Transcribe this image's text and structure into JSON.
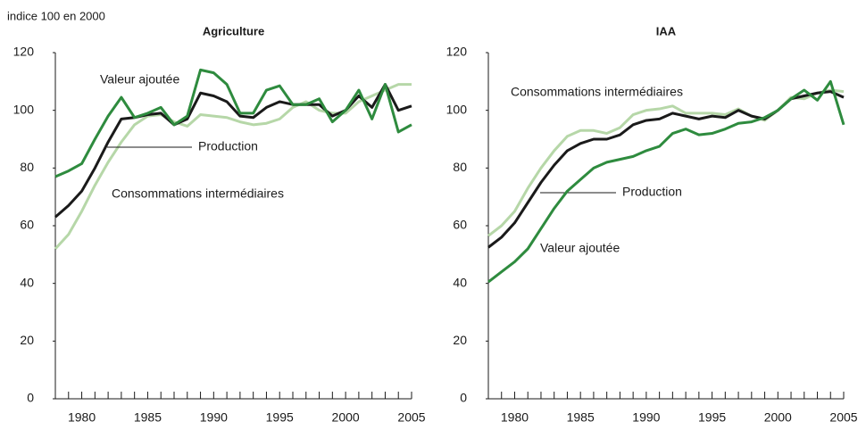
{
  "chart_data": [
    {
      "type": "line",
      "title": "Agriculture",
      "subtitle": "indice 100 en 2000",
      "x": [
        1978,
        1979,
        1980,
        1981,
        1982,
        1983,
        1984,
        1985,
        1986,
        1987,
        1988,
        1989,
        1990,
        1991,
        1992,
        1993,
        1994,
        1995,
        1996,
        1997,
        1998,
        1999,
        2000,
        2001,
        2002,
        2003,
        2004,
        2005
      ],
      "xlim": [
        1978,
        2005
      ],
      "xticks": [
        1980,
        1985,
        1990,
        1995,
        2000,
        2005
      ],
      "ylim": [
        0,
        120
      ],
      "yticks": [
        0,
        20,
        40,
        60,
        80,
        100,
        120
      ],
      "grid": false,
      "series": [
        {
          "name": "Consommations intermédiaires",
          "color": "#b6d7a8",
          "values": [
            52,
            57,
            65,
            74,
            82,
            89,
            95,
            98,
            98.5,
            96,
            94.5,
            98.5,
            98,
            97.5,
            96,
            95,
            95.5,
            97,
            101,
            103,
            100,
            99,
            99,
            103,
            105,
            107,
            109,
            109
          ]
        },
        {
          "name": "Production",
          "color": "#1a1a1a",
          "values": [
            63,
            67,
            72,
            80,
            89,
            97,
            97.5,
            98.5,
            99,
            95,
            97,
            106,
            105,
            103,
            98,
            97.5,
            101,
            103,
            102,
            102,
            102,
            98,
            100,
            105,
            101,
            109,
            100,
            101.5
          ]
        },
        {
          "name": "Valeur ajoutée",
          "color": "#2e8b3e",
          "values": [
            77,
            79,
            81.5,
            90,
            98,
            104.5,
            97.5,
            99,
            101,
            95,
            98,
            114,
            113,
            109,
            99,
            99,
            107,
            108.5,
            102,
            102,
            104,
            96,
            100,
            107,
            97,
            109,
            92.5,
            95
          ]
        }
      ]
    },
    {
      "type": "line",
      "title": "IAA",
      "x": [
        1978,
        1979,
        1980,
        1981,
        1982,
        1983,
        1984,
        1985,
        1986,
        1987,
        1988,
        1989,
        1990,
        1991,
        1992,
        1993,
        1994,
        1995,
        1996,
        1997,
        1998,
        1999,
        2000,
        2001,
        2002,
        2003,
        2004,
        2005
      ],
      "xlim": [
        1978,
        2005
      ],
      "xticks": [
        1980,
        1985,
        1990,
        1995,
        2000,
        2005
      ],
      "ylim": [
        0,
        120
      ],
      "yticks": [
        0,
        20,
        40,
        60,
        80,
        100,
        120
      ],
      "grid": false,
      "series": [
        {
          "name": "Consommations intermédiaires",
          "color": "#b6d7a8",
          "values": [
            56.5,
            60,
            65,
            73,
            80,
            86,
            91,
            93,
            93,
            92,
            94,
            98.5,
            100,
            100.5,
            101.5,
            99,
            99,
            99,
            98.5,
            100.5,
            98,
            96.5,
            100,
            104.5,
            104,
            106,
            107,
            106.5
          ]
        },
        {
          "name": "Production",
          "color": "#1a1a1a",
          "values": [
            52.5,
            56,
            61,
            68,
            75,
            81,
            86,
            88.5,
            90,
            90,
            91.5,
            95,
            96.5,
            97,
            99,
            98,
            97,
            98,
            97.5,
            100,
            98,
            97,
            100,
            104,
            105,
            106,
            106.5,
            104.5
          ]
        },
        {
          "name": "Valeur ajoutée",
          "color": "#2e8b3e",
          "values": [
            40.5,
            44,
            47.5,
            52,
            59,
            66,
            72,
            76,
            80,
            82,
            83,
            84,
            86,
            87.5,
            92,
            93.5,
            91.5,
            92,
            93.5,
            95.5,
            96,
            97.5,
            100,
            104,
            107,
            103.5,
            110,
            95
          ]
        }
      ]
    }
  ]
}
